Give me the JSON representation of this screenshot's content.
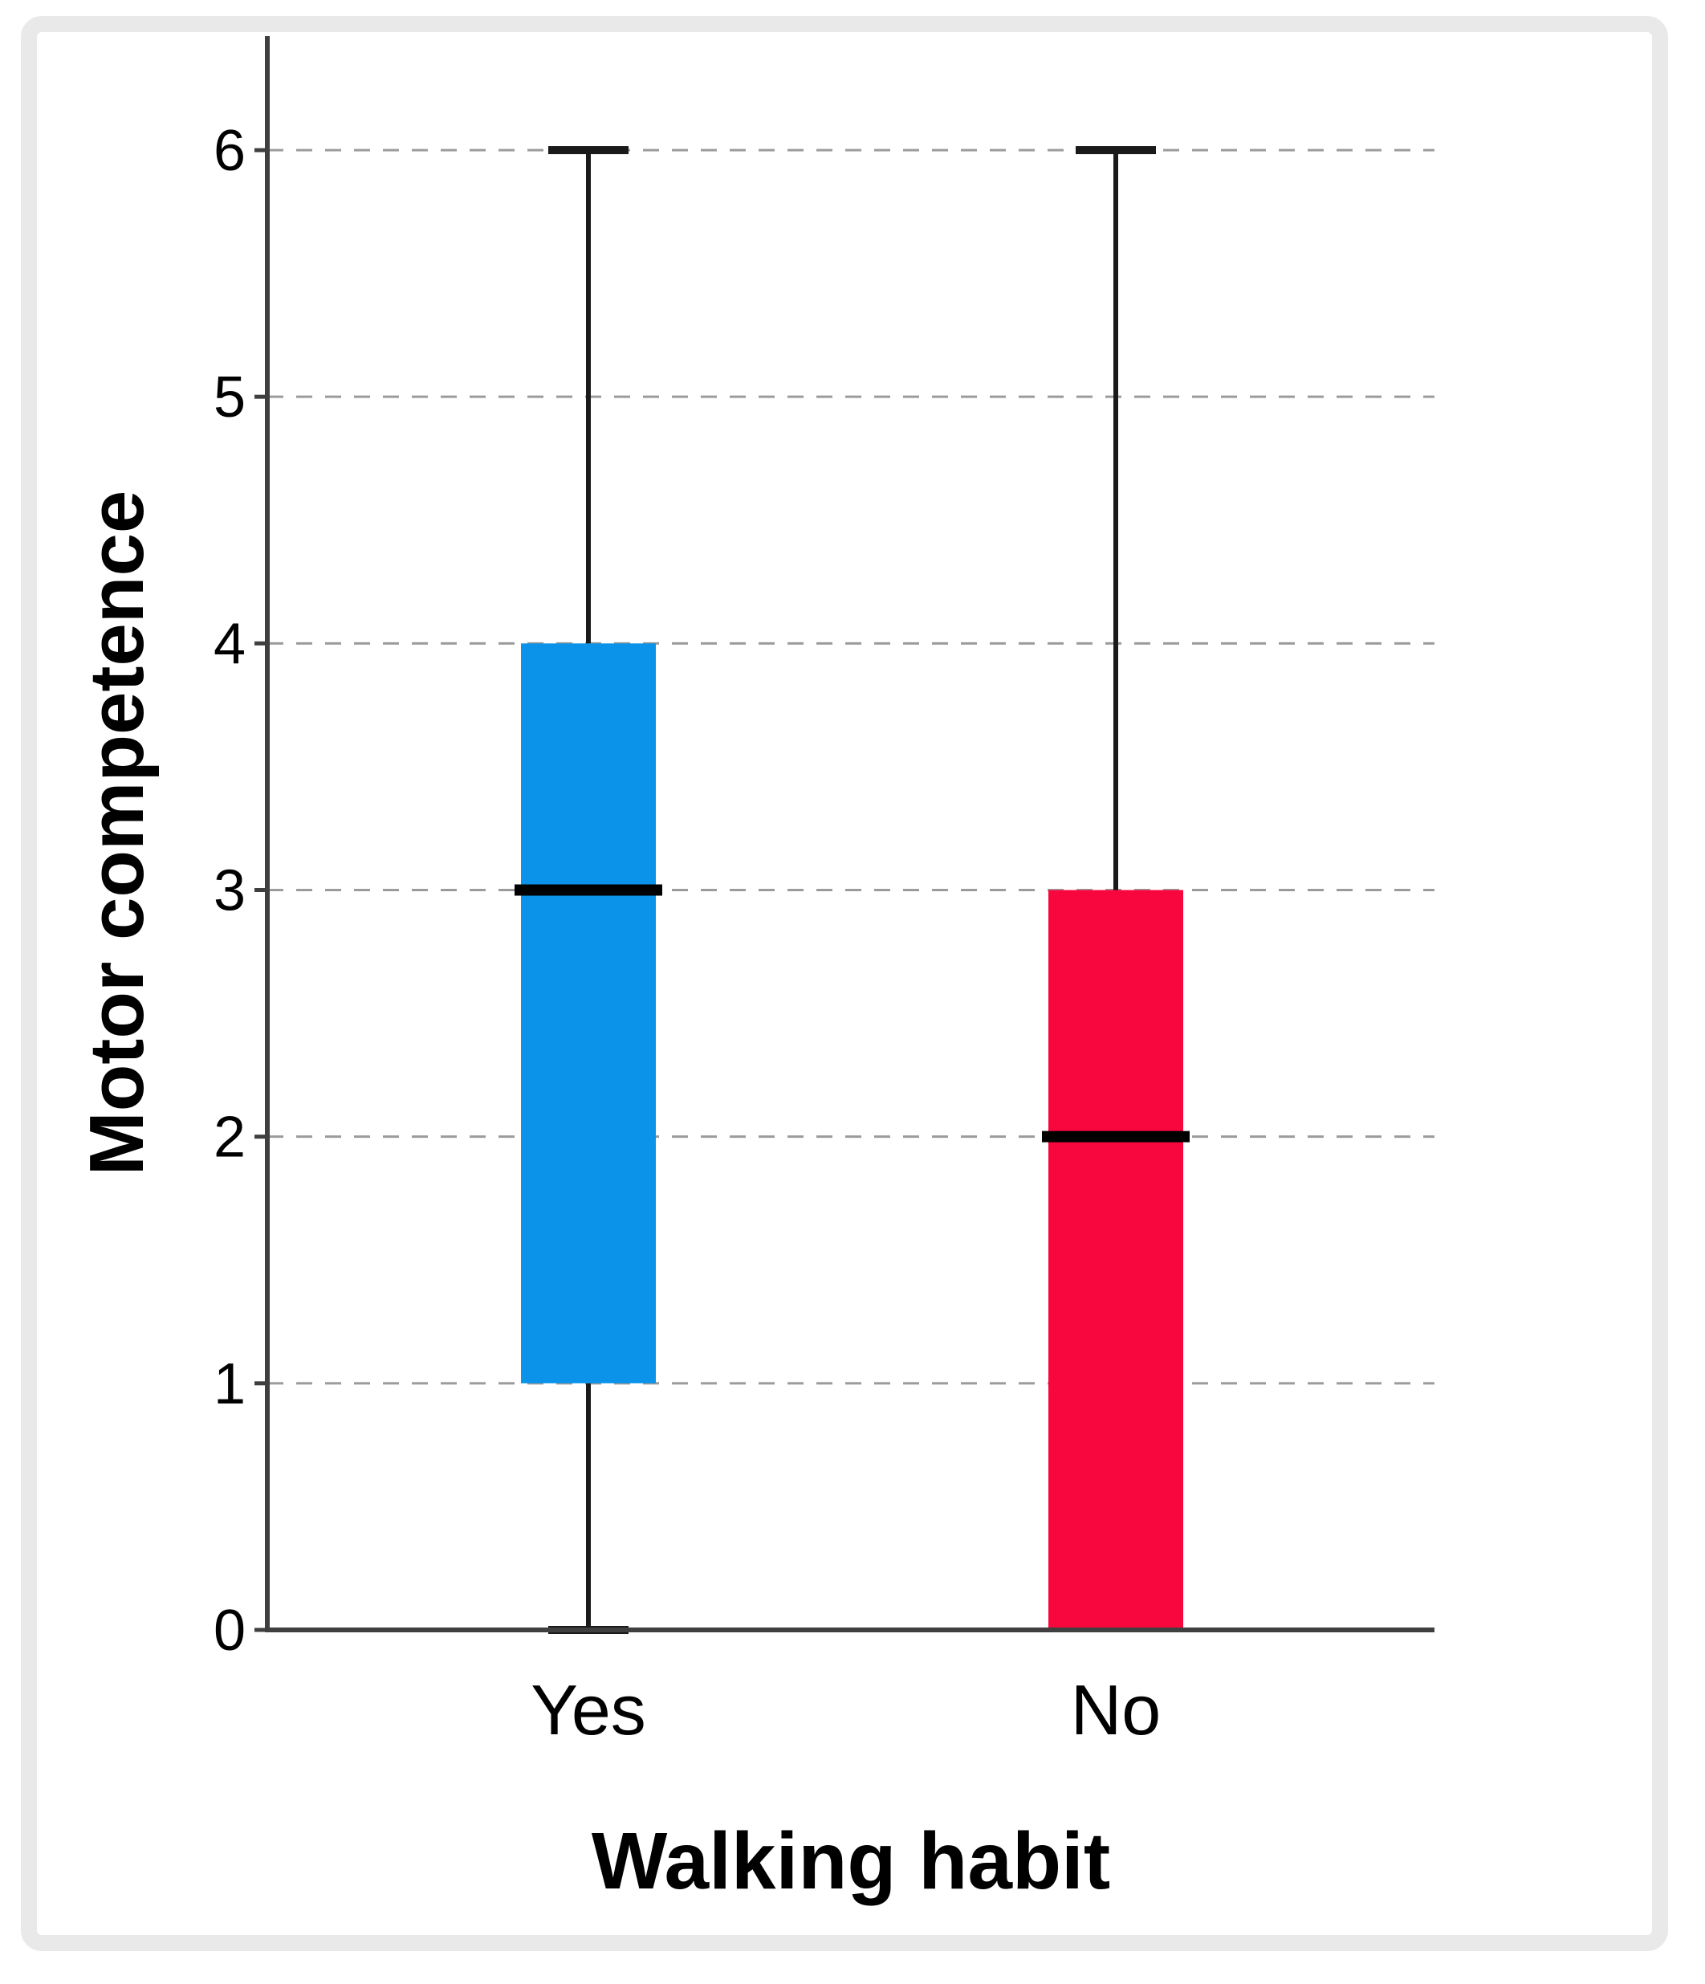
{
  "page": {
    "background_color": "#ffffff",
    "frame_color": "#e9e9e9"
  },
  "chart_data": {
    "type": "boxplot",
    "title": "",
    "xlabel": "Walking habit",
    "ylabel": "Motor competence",
    "categories": [
      "Yes",
      "No"
    ],
    "ylim": [
      0,
      6
    ],
    "yticks": [
      0,
      1,
      2,
      3,
      4,
      5,
      6
    ],
    "grid": "horizontal-dashed",
    "legend_position": "none",
    "series": [
      {
        "name": "Yes",
        "color": "#0a93e8",
        "whisker_low": 0,
        "q1": 1,
        "median": 3,
        "q3": 4,
        "whisker_high": 6
      },
      {
        "name": "No",
        "color": "#f8073e",
        "whisker_low": 0,
        "q1": 0,
        "median": 2,
        "q3": 3,
        "whisker_high": 6
      }
    ],
    "colors": {
      "axis": "#3f3f3f",
      "gridline": "#9b9b9b",
      "whisker": "#1a1a1a",
      "median": "#000000"
    }
  }
}
